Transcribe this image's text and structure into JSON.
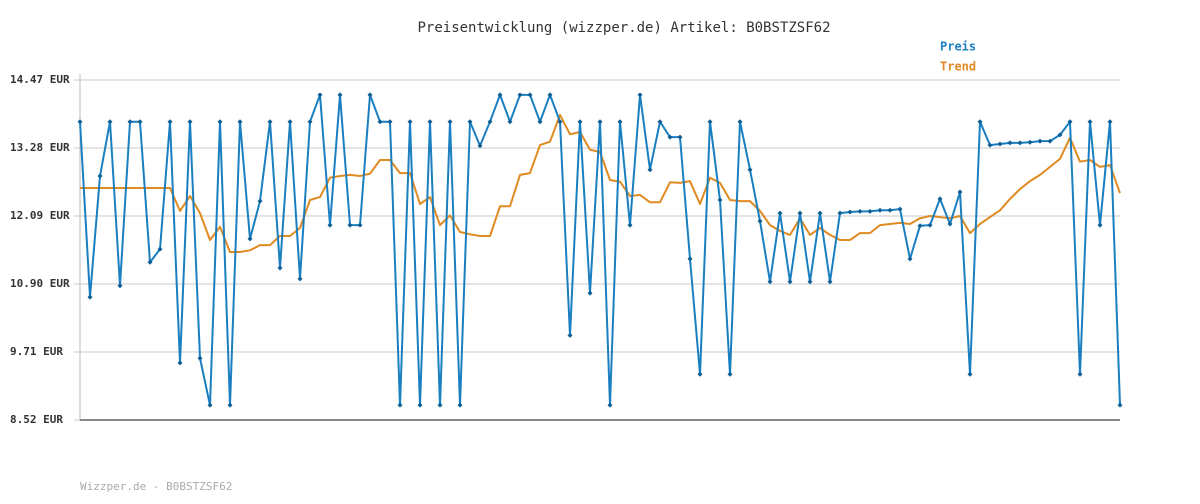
{
  "chart_data": {
    "type": "line",
    "title": "Preisentwicklung (wizzper.de) Artikel: B0BSTZSF62",
    "footer": "Wizzper.de - B0BSTZSF62",
    "ylim": [
      8.52,
      14.47
    ],
    "yticks": [
      {
        "value": 8.52,
        "label": "8.52 EUR"
      },
      {
        "value": 9.71,
        "label": "9.71 EUR"
      },
      {
        "value": 10.9,
        "label": "10.90 EUR"
      },
      {
        "value": 12.09,
        "label": "12.09 EUR"
      },
      {
        "value": 13.28,
        "label": "13.28 EUR"
      },
      {
        "value": 14.47,
        "label": "14.47 EUR"
      }
    ],
    "grid": true,
    "legend": "top-right",
    "series": [
      {
        "name": "Preis",
        "color": "#1a7fc0",
        "markers": true,
        "values": [
          13.74,
          10.67,
          12.79,
          13.74,
          10.87,
          13.74,
          13.74,
          11.28,
          11.51,
          13.74,
          9.52,
          13.74,
          9.6,
          8.78,
          13.74,
          8.78,
          13.74,
          11.69,
          12.35,
          13.74,
          11.18,
          13.74,
          10.99,
          13.74,
          14.21,
          11.93,
          14.21,
          11.93,
          11.93,
          14.21,
          13.74,
          13.74,
          8.78,
          13.74,
          8.78,
          13.74,
          8.78,
          13.74,
          8.78,
          13.74,
          13.32,
          13.74,
          14.21,
          13.74,
          14.21,
          14.21,
          13.74,
          14.21,
          13.74,
          10.0,
          13.74,
          10.74,
          13.74,
          8.78,
          13.74,
          11.93,
          14.21,
          12.9,
          13.74,
          13.47,
          13.47,
          11.34,
          9.32,
          13.74,
          12.37,
          9.32,
          13.74,
          12.9,
          12.0,
          10.94,
          12.14,
          10.94,
          12.14,
          10.94,
          12.14,
          10.94,
          12.14,
          12.16,
          12.17,
          12.17,
          12.19,
          12.19,
          12.21,
          11.34,
          11.92,
          11.93,
          12.39,
          11.95,
          12.51,
          9.32,
          13.74,
          13.33,
          13.35,
          13.37,
          13.37,
          13.38,
          13.4,
          13.4,
          13.51,
          13.74,
          9.32,
          13.74,
          11.93,
          13.74,
          8.78
        ]
      },
      {
        "name": "Trend",
        "color": "#e08a22",
        "markers": false,
        "values": [
          12.58,
          12.58,
          12.58,
          12.58,
          12.58,
          12.58,
          12.58,
          12.58,
          12.58,
          12.58,
          12.18,
          12.44,
          12.14,
          11.67,
          11.9,
          11.46,
          11.46,
          11.49,
          11.58,
          11.58,
          11.74,
          11.74,
          11.88,
          12.37,
          12.42,
          12.76,
          12.79,
          12.81,
          12.79,
          12.83,
          13.07,
          13.07,
          12.84,
          12.84,
          12.3,
          12.42,
          11.93,
          12.1,
          11.81,
          11.77,
          11.74,
          11.74,
          12.26,
          12.26,
          12.81,
          12.84,
          13.33,
          13.39,
          13.86,
          13.52,
          13.56,
          13.25,
          13.21,
          12.72,
          12.69,
          12.44,
          12.46,
          12.33,
          12.33,
          12.68,
          12.67,
          12.7,
          12.3,
          12.76,
          12.67,
          12.37,
          12.35,
          12.35,
          12.18,
          11.93,
          11.83,
          11.76,
          12.05,
          11.76,
          11.88,
          11.76,
          11.67,
          11.67,
          11.79,
          11.79,
          11.93,
          11.95,
          11.97,
          11.95,
          12.05,
          12.09,
          12.07,
          12.05,
          12.09,
          11.79,
          11.95,
          12.07,
          12.19,
          12.39,
          12.56,
          12.7,
          12.81,
          12.95,
          13.09,
          13.46,
          13.04,
          13.07,
          12.95,
          12.98,
          12.49
        ]
      }
    ]
  }
}
